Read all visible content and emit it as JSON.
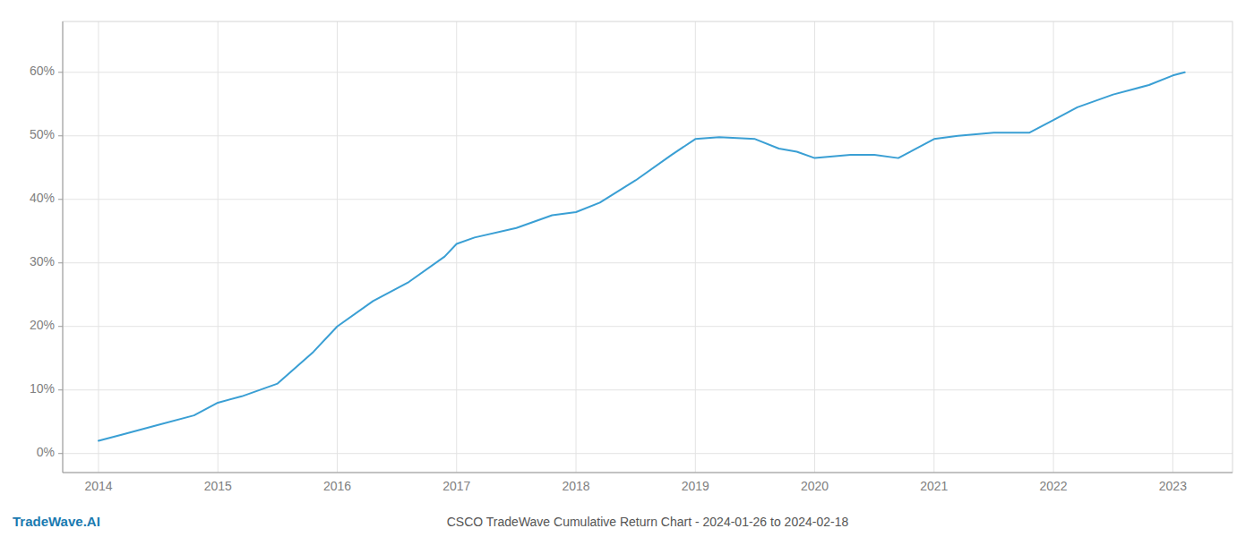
{
  "chart_data": {
    "type": "line",
    "title": "CSCO TradeWave Cumulative Return Chart - 2024-01-26 to 2024-02-18",
    "annotations": [
      {
        "text": "TradeWave.AI"
      }
    ],
    "x": [
      2014.0,
      2014.2,
      2014.5,
      2014.8,
      2015.0,
      2015.2,
      2015.5,
      2015.8,
      2016.0,
      2016.3,
      2016.6,
      2016.9,
      2017.0,
      2017.15,
      2017.5,
      2017.8,
      2018.0,
      2018.2,
      2018.5,
      2018.8,
      2019.0,
      2019.2,
      2019.5,
      2019.7,
      2019.85,
      2020.0,
      2020.3,
      2020.5,
      2020.7,
      2021.0,
      2021.2,
      2021.5,
      2021.8,
      2022.0,
      2022.2,
      2022.5,
      2022.8,
      2023.0,
      2023.1
    ],
    "values": [
      2.0,
      3.0,
      4.5,
      6.0,
      8.0,
      9.0,
      11.0,
      16.0,
      20.0,
      24.0,
      27.0,
      31.0,
      33.0,
      34.0,
      35.5,
      37.5,
      38.0,
      39.5,
      43.0,
      47.0,
      49.5,
      49.8,
      49.5,
      48.0,
      47.5,
      46.5,
      47.0,
      47.0,
      46.5,
      49.5,
      50.0,
      50.5,
      50.5,
      52.5,
      54.5,
      56.5,
      58.0,
      59.5,
      60.0
    ],
    "color": "#3a9fd4",
    "xlim": [
      2013.7,
      2023.5
    ],
    "ylim": [
      -3,
      68
    ],
    "xticks": [
      2014,
      2015,
      2016,
      2017,
      2018,
      2019,
      2020,
      2021,
      2022,
      2023
    ],
    "yticks": [
      {
        "value": 0,
        "label": "0%"
      },
      {
        "value": 10,
        "label": "10%"
      },
      {
        "value": 20,
        "label": "20%"
      },
      {
        "value": 30,
        "label": "30%"
      },
      {
        "value": 40,
        "label": "40%"
      },
      {
        "value": 50,
        "label": "50%"
      },
      {
        "value": 60,
        "label": "60%"
      }
    ],
    "grid": true
  }
}
